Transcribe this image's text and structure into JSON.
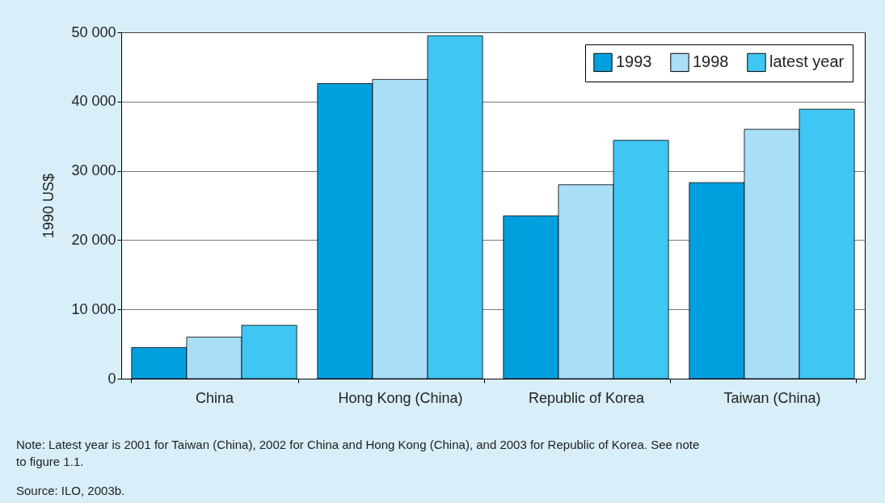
{
  "chart_data": {
    "type": "bar",
    "ylabel": "1990 US$",
    "categories": [
      "China",
      "Hong Kong (China)",
      "Republic of Korea",
      "Taiwan (China)"
    ],
    "series": [
      {
        "name": "1993",
        "color": "#00a0df",
        "values": [
          4500,
          42600,
          23500,
          28300
        ]
      },
      {
        "name": "1998",
        "color": "#a9def7",
        "values": [
          6000,
          43200,
          28000,
          36000
        ]
      },
      {
        "name": "latest year",
        "color": "#40c6f2",
        "values": [
          7700,
          49500,
          34400,
          38900
        ]
      }
    ],
    "ylim": [
      0,
      50000
    ],
    "yticks": [
      0,
      {
        "value": 10000,
        "label": "10 000"
      },
      {
        "value": 20000,
        "label": "20 000"
      },
      {
        "value": 30000,
        "label": "30 000"
      },
      {
        "value": 40000,
        "label": "40 000"
      },
      {
        "value": 50000,
        "label": "50 000"
      }
    ],
    "grid": "y",
    "legend": "top right",
    "annotations": [
      "Note: Latest year is 2001 for Taiwan (China), 2002 for China and Hong Kong (China), and 2003 for Republic of Korea. See note to figure 1.1.",
      "Source: ILO, 2003b."
    ]
  }
}
